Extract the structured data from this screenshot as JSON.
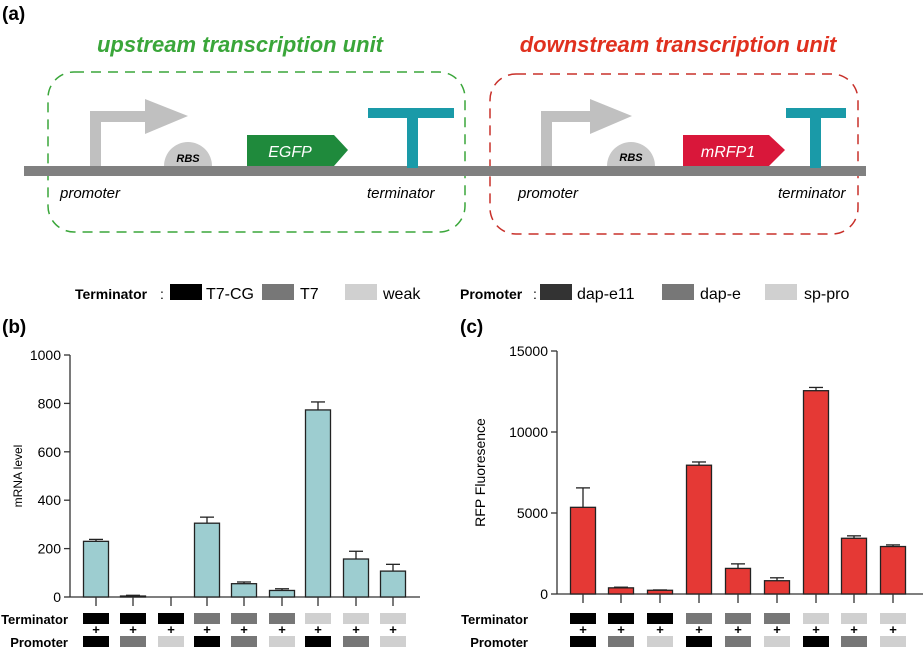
{
  "panel_labels": {
    "a": "(a)",
    "b": "(b)",
    "c": "(c)"
  },
  "diagram": {
    "upstream": {
      "title": "upstream transcription unit",
      "color": "#3aa63a",
      "promoter": "promoter",
      "rbs": "RBS",
      "gene": "EGFP",
      "gene_color": "#1f8a3c",
      "terminator": "terminator"
    },
    "downstream": {
      "title": "downstream transcription unit",
      "color": "#e0301e",
      "promoter": "promoter",
      "rbs": "RBS",
      "gene": "mRFP1",
      "gene_color": "#d9173a",
      "terminator": "terminator"
    },
    "terminator_color": "#1a9aa8",
    "promoter_color": "#c0c0c0",
    "backbone_color": "#808080"
  },
  "legend": {
    "terminator_title": "Terminator",
    "terminator_items": [
      {
        "label": "T7-CG",
        "color": "#000000"
      },
      {
        "label": "T7",
        "color": "#777777"
      },
      {
        "label": "weak",
        "color": "#d0d0d0"
      }
    ],
    "promoter_title": "Promoter",
    "promoter_items": [
      {
        "label": "dap-e11",
        "color": "#333333"
      },
      {
        "label": "dap-e",
        "color": "#777777"
      },
      {
        "label": "sp-pro",
        "color": "#d0d0d0"
      }
    ]
  },
  "row_labels": {
    "terminator": "Terminator",
    "promoter": "Promoter",
    "plus": "+"
  },
  "chart_data": [
    {
      "type": "bar",
      "panel": "b",
      "ylabel": "mRNA level",
      "ylim": [
        0,
        1000
      ],
      "yticks": [
        "0",
        "200",
        "400",
        "600",
        "800",
        "1000"
      ],
      "bar_color": "#9dcdd0",
      "categories_terminator": [
        "T7-CG",
        "T7-CG",
        "T7-CG",
        "T7",
        "T7",
        "T7",
        "weak",
        "weak",
        "weak"
      ],
      "categories_promoter": [
        "dap-e11",
        "dap-e",
        "sp-pro",
        "dap-e11",
        "dap-e",
        "sp-pro",
        "dap-e11",
        "dap-e",
        "sp-pro"
      ],
      "values": [
        230,
        4,
        0,
        305,
        55,
        27,
        773,
        157,
        107
      ],
      "errors": [
        8,
        3,
        0,
        25,
        7,
        7,
        33,
        32,
        28
      ]
    },
    {
      "type": "bar",
      "panel": "c",
      "ylabel": "RFP Fluoresence",
      "ylim": [
        0,
        15000
      ],
      "yticks": [
        "0",
        "5000",
        "10000",
        "15000"
      ],
      "bar_color": "#e53935",
      "categories_terminator": [
        "T7-CG",
        "T7-CG",
        "T7-CG",
        "T7",
        "T7",
        "T7",
        "weak",
        "weak",
        "weak"
      ],
      "categories_promoter": [
        "dap-e11",
        "dap-e",
        "sp-pro",
        "dap-e11",
        "dap-e",
        "sp-pro",
        "dap-e11",
        "dap-e",
        "sp-pro"
      ],
      "values": [
        5350,
        380,
        230,
        7950,
        1580,
        820,
        12550,
        3440,
        2930
      ],
      "errors": [
        1200,
        40,
        20,
        200,
        280,
        180,
        200,
        150,
        100
      ]
    }
  ]
}
